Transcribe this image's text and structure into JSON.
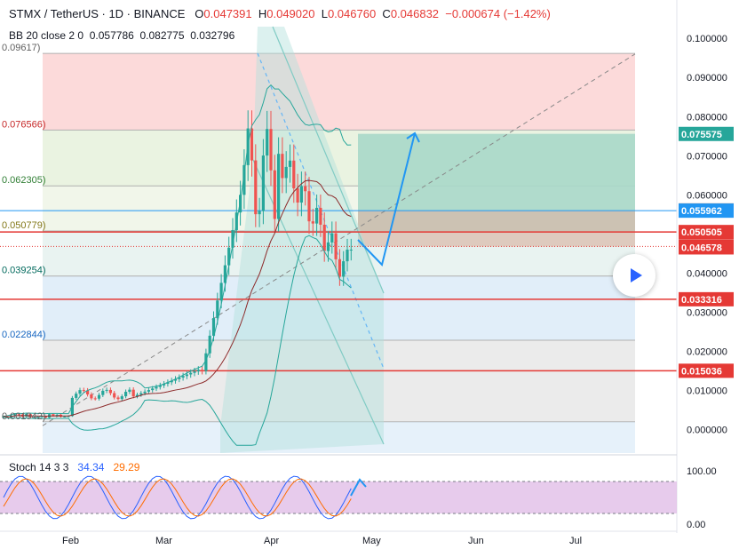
{
  "header": {
    "symbol": "STMX / TetherUS · 1D · BINANCE",
    "open_k": "O",
    "open": "0.047391",
    "high_k": "H",
    "high": "0.049020",
    "low_k": "L",
    "low": "0.046760",
    "close_k": "C",
    "close": "0.046832",
    "change": "−0.000674 (−1.42%)"
  },
  "bb": {
    "label": "BB 20 close 2 0",
    "v1": "0.057786",
    "v2": "0.082775",
    "v3": "0.032796"
  },
  "stoch": {
    "label": "Stoch 14 3 3",
    "k": "34.34",
    "d": "29.29"
  },
  "colors": {
    "up": "#26a69a",
    "down": "#ef5350",
    "bb": "#26a69a",
    "sma": "#8d2b2b",
    "hline": "#e53935",
    "blue": "#2196f3",
    "stoch_fill": "#e1bee7"
  },
  "chart_data": {
    "type": "candlestick",
    "title": "STMX / TetherUS · 1D · BINANCE",
    "ylim": [
      -0.006,
      0.103
    ],
    "y_ticks": [
      "0.100000",
      "0.090000",
      "0.080000",
      "0.070000",
      "0.060000",
      "0.050000",
      "0.040000",
      "0.030000",
      "0.020000",
      "0.010000",
      "0.000000"
    ],
    "x_ticks": [
      "Feb",
      "Mar",
      "Apr",
      "May",
      "Jun",
      "Jul"
    ],
    "stoch_ticks": [
      "100.00",
      "0.00"
    ],
    "price_labels": [
      {
        "value": "0.075575",
        "y": 0.075575,
        "color": "#26a69a"
      },
      {
        "value": "0.056031",
        "y": 0.056031,
        "color": "#787b86"
      },
      {
        "value": "0.055962",
        "y": 0.055962,
        "color": "#2196f3"
      },
      {
        "value": "0.050505",
        "y": 0.050505,
        "color": "#e53935"
      },
      {
        "value": "0.046832",
        "y": 0.046832,
        "color": "#e53935"
      },
      {
        "value": "0.046578",
        "y": 0.046578,
        "color": "#e53935"
      },
      {
        "value": "0.033316",
        "y": 0.033316,
        "color": "#e53935"
      },
      {
        "value": "0.015036",
        "y": 0.015036,
        "color": "#e53935"
      }
    ],
    "fib_labels": [
      {
        "text": "0.09617)",
        "y": 0.09617
      },
      {
        "text": "0.076566)",
        "y": 0.076566
      },
      {
        "text": "0.062305)",
        "y": 0.062305
      },
      {
        "text": "0.050779)",
        "y": 0.050779
      },
      {
        "text": "0.039254)",
        "y": 0.039254
      },
      {
        "text": "0.022844)",
        "y": 0.022844
      },
      {
        "text": "0.001942)",
        "y": 0.001942
      }
    ],
    "horizontal_lines": [
      0.050505,
      0.033316,
      0.015036,
      0.055962
    ]
  }
}
